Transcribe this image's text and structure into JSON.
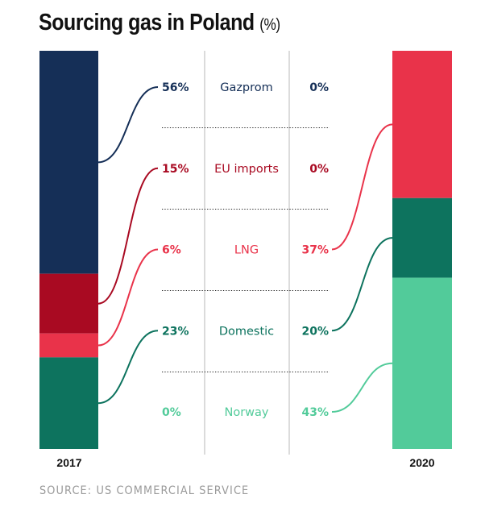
{
  "title": "Sourcing gas in Poland",
  "title_unit": "(%)",
  "source": "SOURCE: US COMMERCIAL SERVICE",
  "chart_data": {
    "type": "bar",
    "subtype": "stacked-100-comparison",
    "title": "Sourcing gas in Poland (%)",
    "categories": [
      "2017",
      "2020"
    ],
    "series": [
      {
        "name": "Gazprom",
        "values": [
          56,
          0
        ],
        "color": "#152f57",
        "label_2017": "56%",
        "label_2020": "0%"
      },
      {
        "name": "EU imports",
        "values": [
          15,
          0
        ],
        "color": "#a90a22",
        "label_2017": "15%",
        "label_2020": "0%"
      },
      {
        "name": "LNG",
        "values": [
          6,
          37
        ],
        "color": "#e9334a",
        "label_2017": "6%",
        "label_2020": "37%"
      },
      {
        "name": "Domestic",
        "values": [
          23,
          20
        ],
        "color": "#0d735e",
        "label_2017": "23%",
        "label_2020": "20%"
      },
      {
        "name": "Norway",
        "values": [
          0,
          43
        ],
        "color": "#52cb9a",
        "label_2017": "0%",
        "label_2020": "43%"
      }
    ],
    "stack_order_2017": [
      "Gazprom",
      "EU imports",
      "LNG",
      "Domestic",
      "Norway"
    ],
    "stack_order_2020": [
      "LNG",
      "Domestic",
      "Norway",
      "Gazprom",
      "EU imports"
    ]
  }
}
